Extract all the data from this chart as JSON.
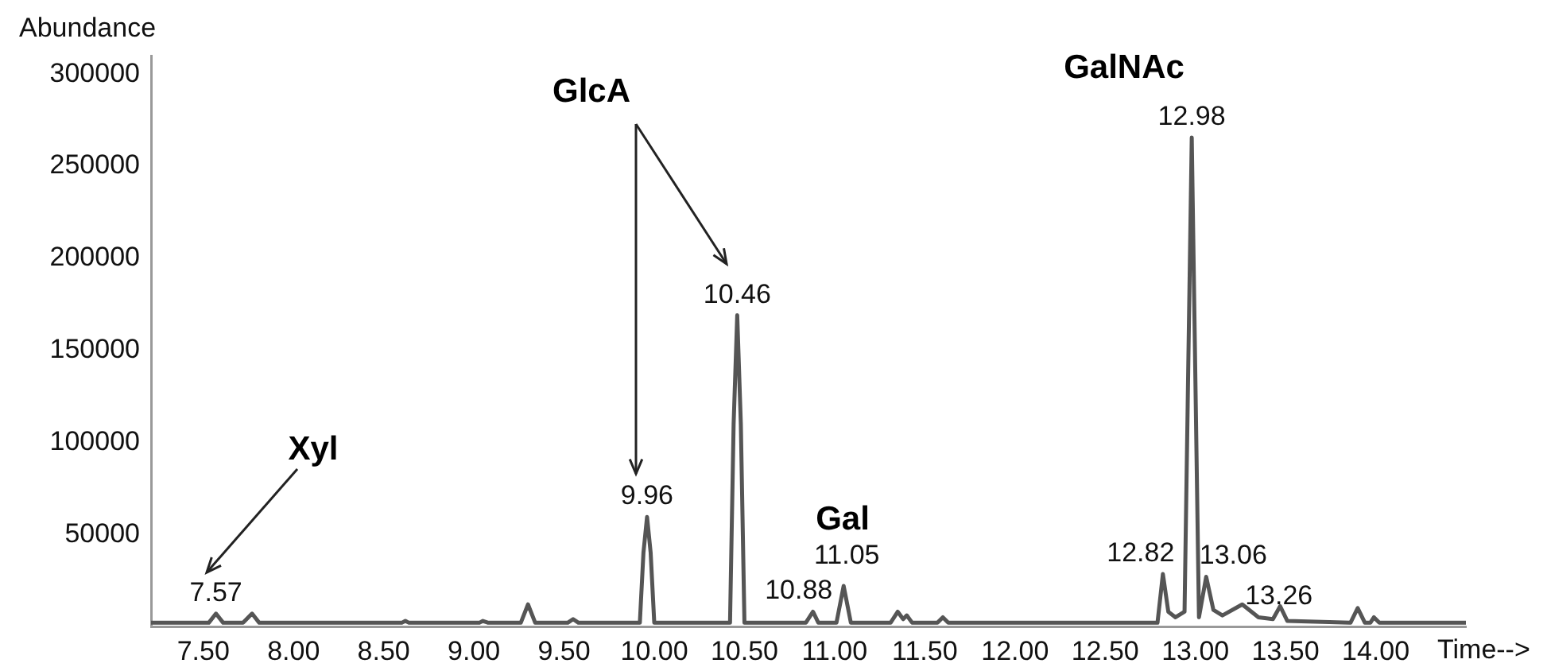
{
  "chart_data": {
    "type": "line",
    "ylabel": "Abundance",
    "xlabel": "Time-->",
    "xlim": [
      7.21,
      14.5
    ],
    "ylim": [
      0,
      310000
    ],
    "xticks": [
      {
        "value": 7.5,
        "label": "7.50"
      },
      {
        "value": 8,
        "label": "8.00"
      },
      {
        "value": 8.5,
        "label": "8.50"
      },
      {
        "value": 9,
        "label": "9.00"
      },
      {
        "value": 9.5,
        "label": "9.50"
      },
      {
        "value": 10,
        "label": "10.00"
      },
      {
        "value": 10.5,
        "label": "10.50"
      },
      {
        "value": 11,
        "label": "11.00"
      },
      {
        "value": 11.5,
        "label": "11.50"
      },
      {
        "value": 12,
        "label": "12.00"
      },
      {
        "value": 12.5,
        "label": "12.50"
      },
      {
        "value": 13,
        "label": "13.00"
      },
      {
        "value": 13.5,
        "label": "13.50"
      },
      {
        "value": 14,
        "label": "14.00"
      }
    ],
    "yticks": [
      50000,
      100000,
      150000,
      200000,
      250000,
      300000
    ],
    "grid": false,
    "legend": false,
    "series": [
      {
        "color": "#555555",
        "x": [
          7.21,
          7.53,
          7.57,
          7.61,
          7.72,
          7.77,
          7.81,
          8.6,
          8.62,
          8.64,
          9.03,
          9.05,
          9.08,
          9.26,
          9.3,
          9.34,
          9.52,
          9.55,
          9.58,
          9.92,
          9.94,
          9.96,
          9.98,
          10.0,
          10.42,
          10.44,
          10.46,
          10.48,
          10.5,
          10.84,
          10.88,
          10.91,
          11.01,
          11.05,
          11.09,
          11.31,
          11.35,
          11.38,
          11.4,
          11.43,
          11.57,
          11.6,
          11.63,
          12.79,
          12.82,
          12.85,
          12.89,
          12.94,
          12.98,
          13.02,
          13.06,
          13.1,
          13.15,
          13.26,
          13.35,
          13.43,
          13.47,
          13.51,
          13.86,
          13.9,
          13.94,
          13.97,
          13.99,
          14.02,
          14.5
        ],
        "values": [
          2000,
          2000,
          7000,
          2000,
          2000,
          7000,
          2000,
          2000,
          3000,
          2000,
          2000,
          3000,
          2000,
          2000,
          12000,
          2000,
          2000,
          4000,
          2000,
          2000,
          40000,
          59500,
          40000,
          2000,
          2000,
          110000,
          169000,
          110000,
          2000,
          2000,
          8000,
          2000,
          2000,
          22000,
          2000,
          2000,
          8000,
          4000,
          6000,
          2000,
          2000,
          5000,
          2000,
          2000,
          28500,
          8000,
          5000,
          8000,
          265500,
          5000,
          27000,
          9000,
          6000,
          12000,
          5000,
          4000,
          11000,
          3000,
          2000,
          10000,
          2000,
          2000,
          5000,
          2000,
          2000
        ]
      }
    ],
    "annotations": [
      "Xyl",
      "GlcA",
      "Gal",
      "GalNAc",
      {
        "text": "7.57",
        "x": 7.57,
        "y": 7000
      },
      {
        "text": "9.96",
        "x": 9.96,
        "y": 59500
      },
      {
        "text": "10.46",
        "x": 10.46,
        "y": 169000
      },
      {
        "text": "10.88",
        "x": 10.88,
        "y": 8000
      },
      {
        "text": "11.05",
        "x": 11.05,
        "y": 22000
      },
      {
        "text": "12.82",
        "x": 12.82,
        "y": 28500
      },
      {
        "text": "12.98",
        "x": 12.98,
        "y": 265500
      },
      {
        "text": "13.06",
        "x": 13.06,
        "y": 27000
      },
      {
        "text": "13.26",
        "x": 13.26,
        "y": 12000
      }
    ]
  }
}
